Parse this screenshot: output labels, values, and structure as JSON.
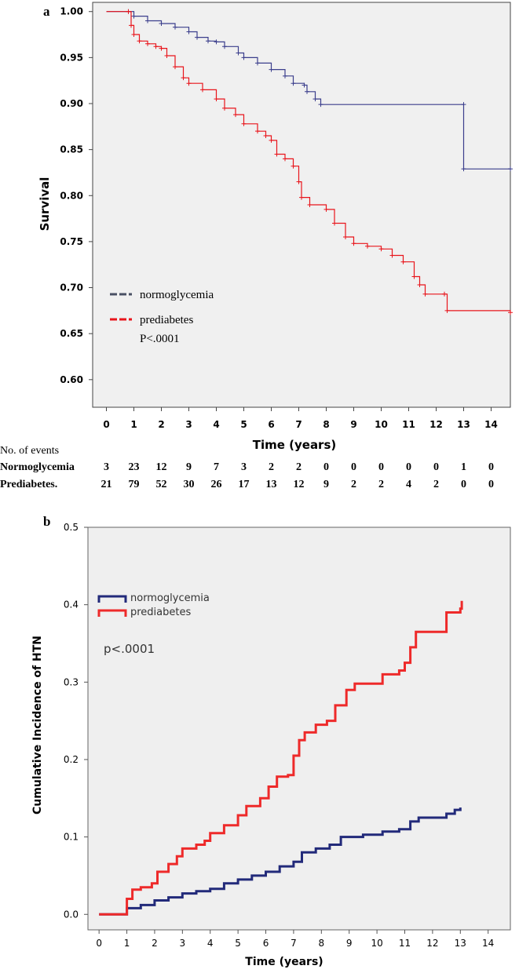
{
  "chart_data": [
    {
      "panel": "a",
      "type": "line",
      "xlabel": "Time (years)",
      "ylabel": "Survival",
      "xlim": [
        -0.5,
        14.7
      ],
      "ylim": [
        0.57,
        1.01
      ],
      "xticks": [
        0,
        1,
        2,
        3,
        4,
        5,
        6,
        7,
        8,
        9,
        10,
        11,
        12,
        13,
        14
      ],
      "yticks": [
        "0.60",
        "0.65",
        "0.70",
        "0.75",
        "0.80",
        "0.85",
        "0.90",
        "0.95",
        "1.00"
      ],
      "legend": [
        "normoglycemia",
        "prediabetes"
      ],
      "legend_position": "bottom-left",
      "annotation": "P<.0001",
      "colors": {
        "normoglycemia": "#3b3e8c",
        "prediabetes": "#e8141b",
        "background": "#f0f0f0"
      },
      "series": [
        {
          "name": "normoglycemia",
          "points": [
            [
              0,
              1.0
            ],
            [
              0.8,
              1.0
            ],
            [
              1,
              0.995
            ],
            [
              1.5,
              0.99
            ],
            [
              2,
              0.987
            ],
            [
              2.5,
              0.983
            ],
            [
              3,
              0.978
            ],
            [
              3.3,
              0.972
            ],
            [
              3.7,
              0.968
            ],
            [
              4,
              0.967
            ],
            [
              4.3,
              0.962
            ],
            [
              4.8,
              0.955
            ],
            [
              5,
              0.95
            ],
            [
              5.5,
              0.944
            ],
            [
              6,
              0.937
            ],
            [
              6.5,
              0.93
            ],
            [
              6.8,
              0.922
            ],
            [
              7.2,
              0.92
            ],
            [
              7.3,
              0.913
            ],
            [
              7.6,
              0.905
            ],
            [
              7.8,
              0.899
            ],
            [
              13.0,
              0.899
            ],
            [
              13.0,
              0.829
            ],
            [
              14.7,
              0.829
            ]
          ]
        },
        {
          "name": "prediabetes",
          "points": [
            [
              0,
              1.0
            ],
            [
              0.8,
              1.0
            ],
            [
              0.9,
              0.985
            ],
            [
              1,
              0.975
            ],
            [
              1.2,
              0.968
            ],
            [
              1.5,
              0.965
            ],
            [
              1.8,
              0.962
            ],
            [
              2,
              0.96
            ],
            [
              2.2,
              0.952
            ],
            [
              2.5,
              0.94
            ],
            [
              2.8,
              0.928
            ],
            [
              3,
              0.922
            ],
            [
              3.5,
              0.915
            ],
            [
              4,
              0.905
            ],
            [
              4.3,
              0.895
            ],
            [
              4.7,
              0.888
            ],
            [
              5,
              0.878
            ],
            [
              5.5,
              0.87
            ],
            [
              5.8,
              0.865
            ],
            [
              6,
              0.86
            ],
            [
              6.2,
              0.845
            ],
            [
              6.5,
              0.84
            ],
            [
              6.8,
              0.832
            ],
            [
              7.0,
              0.815
            ],
            [
              7.1,
              0.798
            ],
            [
              7.4,
              0.79
            ],
            [
              8,
              0.785
            ],
            [
              8.3,
              0.77
            ],
            [
              8.7,
              0.755
            ],
            [
              9,
              0.748
            ],
            [
              9.5,
              0.745
            ],
            [
              10,
              0.742
            ],
            [
              10.4,
              0.735
            ],
            [
              10.8,
              0.728
            ],
            [
              11.2,
              0.712
            ],
            [
              11.4,
              0.703
            ],
            [
              11.6,
              0.693
            ],
            [
              12.3,
              0.693
            ],
            [
              12.4,
              0.675
            ],
            [
              14.7,
              0.673
            ]
          ]
        }
      ]
    },
    {
      "panel": "b",
      "type": "line",
      "xlabel": "Time (years)",
      "ylabel": "Cumulative Incidence of HTN",
      "xlim": [
        -0.4,
        14.8
      ],
      "ylim": [
        -0.02,
        0.5
      ],
      "xticks": [
        0,
        1,
        2,
        3,
        4,
        5,
        6,
        7,
        8,
        9,
        10,
        11,
        12,
        13,
        14
      ],
      "yticks": [
        "0.0",
        "0.1",
        "0.2",
        "0.3",
        "0.4",
        "0.5"
      ],
      "legend": [
        "normoglycemia",
        "prediabetes"
      ],
      "legend_position": "top-left",
      "annotation": "p<.0001",
      "colors": {
        "normoglycemia": "#222a7a",
        "prediabetes": "#ee2a2a",
        "background": "#efefef"
      },
      "series": [
        {
          "name": "normoglycemia",
          "points": [
            [
              0,
              0
            ],
            [
              0.9,
              0
            ],
            [
              1,
              0.008
            ],
            [
              1.5,
              0.012
            ],
            [
              2,
              0.018
            ],
            [
              2.5,
              0.022
            ],
            [
              3,
              0.027
            ],
            [
              3.5,
              0.03
            ],
            [
              4,
              0.033
            ],
            [
              4.5,
              0.04
            ],
            [
              5,
              0.045
            ],
            [
              5.5,
              0.05
            ],
            [
              6,
              0.055
            ],
            [
              6.5,
              0.062
            ],
            [
              7,
              0.068
            ],
            [
              7.3,
              0.08
            ],
            [
              7.8,
              0.085
            ],
            [
              8.3,
              0.09
            ],
            [
              8.7,
              0.1
            ],
            [
              9.5,
              0.103
            ],
            [
              10.2,
              0.107
            ],
            [
              10.8,
              0.11
            ],
            [
              11.2,
              0.12
            ],
            [
              11.5,
              0.125
            ],
            [
              12.5,
              0.13
            ],
            [
              12.8,
              0.135
            ],
            [
              13.0,
              0.138
            ]
          ]
        },
        {
          "name": "prediabetes",
          "points": [
            [
              0,
              0
            ],
            [
              0.9,
              0
            ],
            [
              1,
              0.02
            ],
            [
              1.2,
              0.032
            ],
            [
              1.5,
              0.035
            ],
            [
              1.9,
              0.04
            ],
            [
              2.1,
              0.055
            ],
            [
              2.5,
              0.065
            ],
            [
              2.8,
              0.075
            ],
            [
              3,
              0.085
            ],
            [
              3.5,
              0.09
            ],
            [
              3.8,
              0.095
            ],
            [
              4,
              0.105
            ],
            [
              4.5,
              0.115
            ],
            [
              5,
              0.128
            ],
            [
              5.3,
              0.14
            ],
            [
              5.8,
              0.15
            ],
            [
              6.1,
              0.165
            ],
            [
              6.4,
              0.178
            ],
            [
              6.8,
              0.18
            ],
            [
              7,
              0.205
            ],
            [
              7.2,
              0.225
            ],
            [
              7.4,
              0.235
            ],
            [
              7.8,
              0.245
            ],
            [
              8.2,
              0.25
            ],
            [
              8.5,
              0.27
            ],
            [
              8.9,
              0.29
            ],
            [
              9.2,
              0.298
            ],
            [
              10,
              0.298
            ],
            [
              10.2,
              0.31
            ],
            [
              10.8,
              0.315
            ],
            [
              11.0,
              0.325
            ],
            [
              11.2,
              0.345
            ],
            [
              11.4,
              0.365
            ],
            [
              12.3,
              0.365
            ],
            [
              12.5,
              0.39
            ],
            [
              13,
              0.395
            ],
            [
              13.05,
              0.405
            ]
          ]
        }
      ]
    }
  ],
  "events_table": {
    "header": "No. of events",
    "rows": [
      {
        "label": "Normoglycemia",
        "values": [
          "3",
          "23",
          "12",
          "9",
          "7",
          "3",
          "2",
          "2",
          "0",
          "0",
          "0",
          "0",
          "0",
          "1",
          "0"
        ]
      },
      {
        "label": "Prediabetes.",
        "values": [
          "21",
          "79",
          "52",
          "30",
          "26",
          "17",
          "13",
          "12",
          "9",
          "2",
          "2",
          "4",
          "2",
          "0",
          "0"
        ]
      }
    ]
  }
}
